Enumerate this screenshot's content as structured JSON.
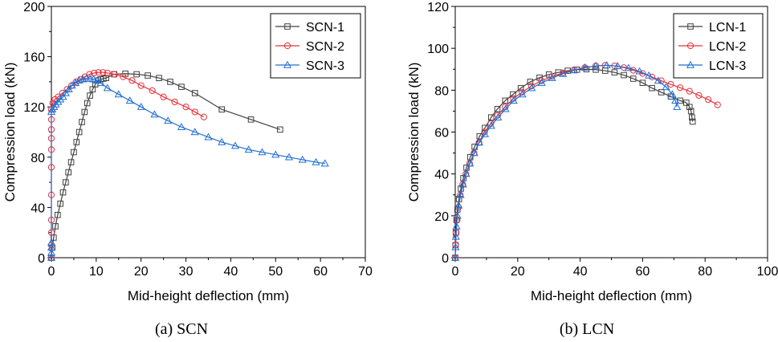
{
  "chart_data": [
    {
      "type": "line",
      "title": "",
      "caption": "(a) SCN",
      "xlabel": "Mid-height deflection (mm)",
      "ylabel": "Compression load (kN)",
      "xlim": [
        0,
        70
      ],
      "ylim": [
        0,
        200
      ],
      "xticks": [
        0,
        10,
        20,
        30,
        40,
        50,
        60,
        70
      ],
      "yticks": [
        0,
        40,
        80,
        120,
        160,
        200
      ],
      "grid": false,
      "legend_position": "top-right",
      "series": [
        {
          "name": "SCN-1",
          "color": "#404040",
          "marker": "square",
          "x": [
            0,
            0.2,
            0.5,
            0.9,
            1.4,
            2.0,
            2.6,
            3.2,
            3.8,
            4.4,
            5.0,
            5.6,
            6.2,
            6.8,
            7.4,
            8.0,
            8.6,
            9.2,
            9.8,
            10.4,
            11.0,
            11.6,
            12.2,
            14.0,
            16.5,
            19.0,
            21.5,
            24.0,
            26.5,
            29.0,
            32.0,
            38.0,
            44.5,
            51.0
          ],
          "y": [
            0,
            8,
            16,
            25,
            34,
            43,
            52,
            60,
            68,
            76,
            84,
            92,
            100,
            108,
            116,
            123,
            129,
            134,
            138,
            141,
            142,
            142.5,
            143,
            146,
            146.5,
            146,
            145,
            143,
            140,
            136,
            131,
            118,
            110,
            102
          ]
        },
        {
          "name": "SCN-2",
          "color": "#e8303a",
          "marker": "circle",
          "x": [
            0,
            0,
            0,
            0,
            0,
            0,
            0,
            0,
            0,
            0,
            0,
            0.3,
            0.8,
            1.5,
            2.5,
            3.5,
            4.5,
            5.5,
            6.5,
            7.5,
            8.5,
            9.5,
            10.5,
            11.5,
            12.5,
            14.0,
            16.0,
            18.0,
            20.0,
            22.5,
            25.0,
            27.5,
            30.0,
            32.0,
            34.0
          ],
          "y": [
            0,
            10,
            20,
            30,
            50,
            72,
            86,
            95,
            102,
            110,
            118,
            123,
            126,
            128,
            131,
            134,
            137,
            140,
            142,
            144,
            146,
            147,
            147.5,
            147.5,
            147,
            146,
            144,
            141,
            137,
            133,
            128,
            124,
            120,
            116,
            112
          ]
        },
        {
          "name": "SCN-3",
          "color": "#1f6fd1",
          "marker": "triangle",
          "x": [
            0,
            0,
            0,
            0,
            0,
            0.2,
            0.6,
            1.0,
            1.5,
            2.0,
            2.6,
            3.2,
            3.9,
            4.6,
            5.4,
            6.2,
            7.0,
            7.8,
            8.6,
            9.4,
            10.2,
            11.0,
            12.5,
            15.0,
            17.5,
            20.0,
            23.0,
            26.0,
            29.0,
            32.0,
            35.0,
            38.0,
            41.0,
            44.0,
            47.0,
            50.0,
            53.0,
            56.0,
            59.0,
            61.0
          ],
          "y": [
            0,
            4,
            8,
            12,
            116,
            118,
            120,
            122,
            124,
            126,
            128,
            131,
            134,
            137,
            139,
            141,
            142,
            142.5,
            142.5,
            142,
            141,
            139,
            135,
            130,
            125,
            120,
            114,
            109,
            104,
            100,
            96,
            92,
            89,
            86,
            84,
            82,
            80,
            78,
            76,
            75
          ]
        }
      ]
    },
    {
      "type": "line",
      "title": "",
      "caption": "(b) LCN",
      "xlabel": "Mid-height deflection (mm)",
      "ylabel": "Compression load (kN)",
      "xlim": [
        0,
        100
      ],
      "ylim": [
        0,
        120
      ],
      "xticks": [
        0,
        20,
        40,
        60,
        80,
        100
      ],
      "yticks": [
        0,
        20,
        40,
        60,
        80,
        100,
        120
      ],
      "grid": false,
      "legend_position": "top-right",
      "series": [
        {
          "name": "LCN-1",
          "color": "#404040",
          "marker": "square",
          "x": [
            0,
            0.1,
            0.2,
            0.4,
            0.7,
            1.2,
            1.8,
            2.6,
            3.6,
            4.8,
            6.2,
            7.8,
            9.5,
            11.5,
            13.5,
            16.0,
            18.5,
            21.0,
            24.0,
            27.0,
            30.0,
            33.0,
            36.0,
            39.0,
            42.0,
            45.0,
            48.0,
            51.0,
            54.0,
            57.0,
            60.0,
            63.0,
            66.0,
            69.0,
            72.0,
            74.0,
            75.0,
            75.5,
            75.8,
            76.0
          ],
          "y": [
            0,
            6,
            12,
            18,
            23,
            28,
            33,
            38,
            43,
            48,
            53,
            58,
            62,
            67,
            71,
            75,
            78,
            81,
            84,
            86,
            87.5,
            88.5,
            89.3,
            89.8,
            90,
            89.8,
            89.3,
            88.5,
            87.2,
            85.5,
            83.5,
            81,
            79,
            77,
            75,
            74,
            72,
            70,
            67,
            65
          ]
        },
        {
          "name": "LCN-2",
          "color": "#e8303a",
          "marker": "circle",
          "x": [
            0,
            0.1,
            0.3,
            0.6,
            1.0,
            1.6,
            2.4,
            3.4,
            4.6,
            6.0,
            7.6,
            9.4,
            11.4,
            13.6,
            16.0,
            18.6,
            21.4,
            24.4,
            27.6,
            31.0,
            34.5,
            38.0,
            41.5,
            45.0,
            48.0,
            51.0,
            54.0,
            57.0,
            60.0,
            63.0,
            66.0,
            69.0,
            72.0,
            75.0,
            78.0,
            81.0,
            84.0
          ],
          "y": [
            0,
            6,
            12,
            18,
            24,
            30,
            35,
            40,
            45,
            50,
            55,
            60,
            64,
            68,
            72,
            76,
            79,
            82,
            84.5,
            86.5,
            88.3,
            89.7,
            90.8,
            91.6,
            91.9,
            91.6,
            90.8,
            89.5,
            88,
            86.3,
            84.5,
            82.8,
            81.2,
            79.5,
            77.5,
            75.5,
            73
          ]
        },
        {
          "name": "LCN-3",
          "color": "#1f6fd1",
          "marker": "triangle",
          "x": [
            0,
            0.1,
            0.2,
            0.4,
            0.7,
            1.1,
            1.7,
            2.5,
            3.5,
            4.7,
            6.1,
            7.7,
            9.5,
            11.5,
            13.7,
            16.1,
            18.7,
            21.5,
            24.5,
            27.7,
            31.0,
            34.5,
            38.0,
            41.5,
            45.0,
            48.5,
            52.0,
            55.5,
            59.0,
            62.0,
            65.0,
            67.5,
            69.5,
            70.5,
            71.0
          ],
          "y": [
            0,
            5,
            10,
            15,
            20,
            25,
            30,
            35,
            40,
            45,
            50,
            55,
            59,
            63,
            67,
            71,
            75,
            78,
            81,
            83.5,
            85.8,
            87.8,
            89.5,
            90.8,
            91.6,
            91.9,
            91.5,
            90.6,
            89,
            87,
            84.5,
            81.5,
            78,
            75,
            72
          ]
        }
      ]
    }
  ]
}
